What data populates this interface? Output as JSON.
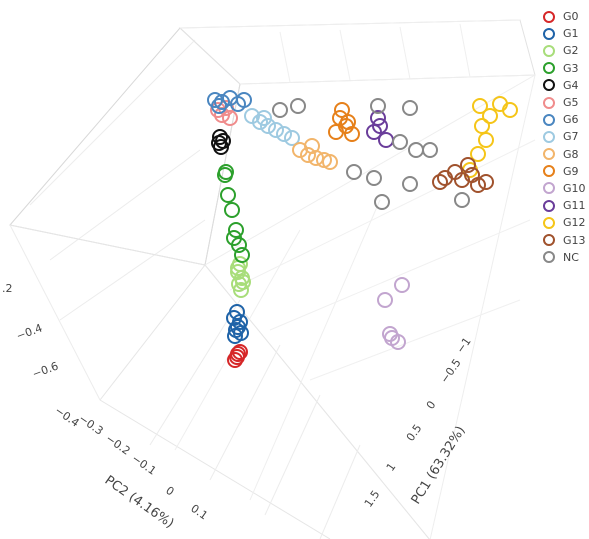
{
  "chart_data": {
    "type": "scatter",
    "projection": "3d",
    "title": "",
    "marker": "open-circle",
    "axes": {
      "x": {
        "label": "PC1 (63.32%)",
        "ticks": [
          "−1",
          "−0.5",
          "0",
          "0.5",
          "1",
          "1.5"
        ]
      },
      "y": {
        "label": "PC2 (4.16%)",
        "ticks": [
          "−0.4",
          "−0.3",
          "−0.2",
          "−0.1",
          "0",
          "0.1"
        ]
      },
      "z": {
        "label": "",
        "ticks": [
          "−0.6",
          "−0.4",
          ".2"
        ]
      }
    },
    "legend_position": "top-right",
    "series": [
      {
        "name": "G0",
        "color": "#d62728",
        "points": [
          [
            238,
            354
          ],
          [
            235,
            360
          ],
          [
            240,
            352
          ],
          [
            237,
            357
          ]
        ]
      },
      {
        "name": "G1",
        "color": "#1f63a8",
        "points": [
          [
            237,
            312
          ],
          [
            234,
            318
          ],
          [
            240,
            322
          ],
          [
            236,
            330
          ],
          [
            238,
            327
          ],
          [
            241,
            333
          ],
          [
            235,
            336
          ]
        ]
      },
      {
        "name": "G2",
        "color": "#a8dd7a",
        "points": [
          [
            240,
            264
          ],
          [
            238,
            272
          ],
          [
            242,
            278
          ],
          [
            239,
            284
          ],
          [
            241,
            290
          ],
          [
            238,
            268
          ],
          [
            243,
            282
          ]
        ]
      },
      {
        "name": "G3",
        "color": "#2ca02c",
        "points": [
          [
            225,
            175
          ],
          [
            228,
            195
          ],
          [
            232,
            210
          ],
          [
            236,
            230
          ],
          [
            239,
            245
          ],
          [
            242,
            255
          ],
          [
            234,
            238
          ],
          [
            226,
            172
          ]
        ]
      },
      {
        "name": "G4",
        "color": "#111111",
        "points": [
          [
            220,
            137
          ],
          [
            223,
            141
          ],
          [
            221,
            147
          ],
          [
            219,
            143
          ]
        ]
      },
      {
        "name": "G5",
        "color": "#f08c8c",
        "points": [
          [
            218,
            110
          ],
          [
            222,
            115
          ],
          [
            226,
            108
          ],
          [
            230,
            118
          ]
        ]
      },
      {
        "name": "G6",
        "color": "#4a86c0",
        "points": [
          [
            215,
            100
          ],
          [
            222,
            102
          ],
          [
            230,
            98
          ],
          [
            238,
            104
          ],
          [
            244,
            100
          ],
          [
            219,
            106
          ]
        ]
      },
      {
        "name": "G7",
        "color": "#9ecae1",
        "points": [
          [
            252,
            116
          ],
          [
            260,
            122
          ],
          [
            268,
            126
          ],
          [
            276,
            130
          ],
          [
            284,
            134
          ],
          [
            292,
            138
          ],
          [
            264,
            118
          ]
        ]
      },
      {
        "name": "G8",
        "color": "#f2b56b",
        "points": [
          [
            300,
            150
          ],
          [
            308,
            155
          ],
          [
            316,
            158
          ],
          [
            324,
            160
          ],
          [
            330,
            162
          ],
          [
            312,
            146
          ]
        ]
      },
      {
        "name": "G9",
        "color": "#e6801a",
        "points": [
          [
            340,
            118
          ],
          [
            346,
            126
          ],
          [
            352,
            134
          ],
          [
            336,
            132
          ],
          [
            348,
            122
          ],
          [
            342,
            110
          ]
        ]
      },
      {
        "name": "G10",
        "color": "#c2a5cf",
        "points": [
          [
            385,
            300
          ],
          [
            402,
            285
          ],
          [
            392,
            338
          ],
          [
            398,
            342
          ],
          [
            390,
            334
          ]
        ]
      },
      {
        "name": "G11",
        "color": "#6a3d9a",
        "points": [
          [
            378,
            118
          ],
          [
            374,
            132
          ],
          [
            386,
            140
          ],
          [
            380,
            126
          ]
        ]
      },
      {
        "name": "G12",
        "color": "#f5c518",
        "points": [
          [
            480,
            106
          ],
          [
            490,
            116
          ],
          [
            500,
            104
          ],
          [
            510,
            110
          ],
          [
            482,
            126
          ],
          [
            486,
            140
          ],
          [
            478,
            154
          ],
          [
            470,
            170
          ]
        ]
      },
      {
        "name": "G13",
        "color": "#a0522d",
        "points": [
          [
            445,
            178
          ],
          [
            455,
            172
          ],
          [
            462,
            180
          ],
          [
            472,
            175
          ],
          [
            478,
            185
          ],
          [
            486,
            182
          ],
          [
            468,
            165
          ],
          [
            440,
            182
          ]
        ]
      },
      {
        "name": "NC",
        "color": "#888888",
        "points": [
          [
            298,
            106
          ],
          [
            280,
            110
          ],
          [
            378,
            106
          ],
          [
            410,
            108
          ],
          [
            400,
            142
          ],
          [
            416,
            150
          ],
          [
            430,
            150
          ],
          [
            354,
            172
          ],
          [
            374,
            178
          ],
          [
            410,
            184
          ],
          [
            382,
            202
          ],
          [
            462,
            200
          ]
        ]
      }
    ]
  }
}
